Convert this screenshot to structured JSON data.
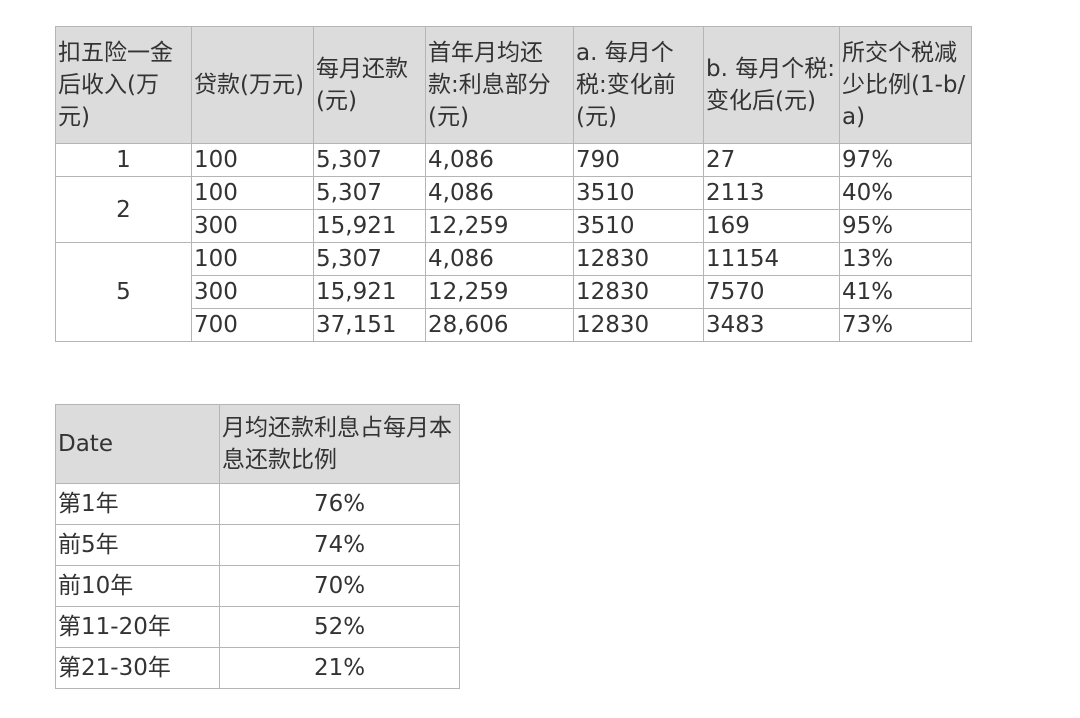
{
  "tax_table": {
    "headers": [
      "扣五险一金后收入(万元)",
      "贷款(万元)",
      "每月还款(元)",
      "首年月均还款:利息部分(元)",
      "a. 每月个税:变化前(元)",
      "b. 每月个税:变化后(元)",
      "所交个税减少比例(1-b/a)"
    ],
    "groups": [
      {
        "income": "1",
        "rows": [
          [
            "100",
            "5,307",
            "4,086",
            "790",
            "27",
            "97%"
          ]
        ]
      },
      {
        "income": "2",
        "rows": [
          [
            "100",
            "5,307",
            "4,086",
            "3510",
            "2113",
            "40%"
          ],
          [
            "300",
            "15,921",
            "12,259",
            "3510",
            "169",
            "95%"
          ]
        ]
      },
      {
        "income": "5",
        "rows": [
          [
            "100",
            "5,307",
            "4,086",
            "12830",
            "11154",
            "13%"
          ],
          [
            "300",
            "15,921",
            "12,259",
            "12830",
            "7570",
            "41%"
          ],
          [
            "700",
            "37,151",
            "28,606",
            "12830",
            "3483",
            "73%"
          ]
        ]
      }
    ]
  },
  "ratio_table": {
    "headers": [
      "Date",
      "月均还款利息占每月本息还款比例"
    ],
    "rows": [
      [
        "第1年",
        "76%"
      ],
      [
        "前5年",
        "74%"
      ],
      [
        "前10年",
        "70%"
      ],
      [
        "第11-20年",
        "52%"
      ],
      [
        "第21-30年",
        "21%"
      ]
    ]
  }
}
